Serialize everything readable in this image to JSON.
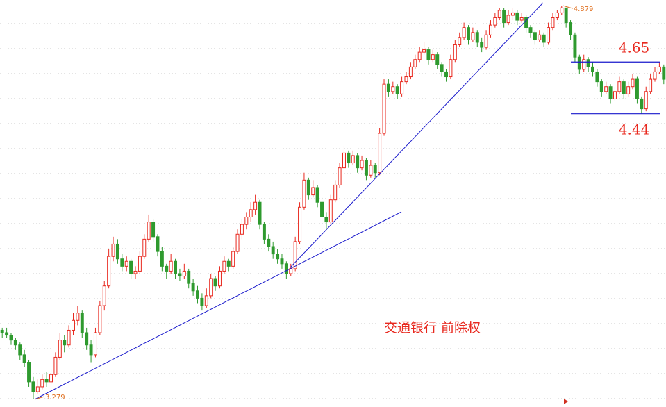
{
  "chart_data": {
    "type": "candlestick",
    "title": "交通银行 前除权",
    "ylim": [
      3.248,
      4.902
    ],
    "up_color": "#e8281e",
    "down_color": "#2f9a2f",
    "hlines": [
      4.65,
      4.44
    ],
    "hline_color": "#1a1acc",
    "marked_extremes": [
      3.279,
      4.879
    ],
    "candles": [
      [
        3.56,
        3.57,
        3.53,
        3.55
      ],
      [
        3.55,
        3.57,
        3.53,
        3.54
      ],
      [
        3.54,
        3.55,
        3.5,
        3.52
      ],
      [
        3.52,
        3.53,
        3.48,
        3.5
      ],
      [
        3.5,
        3.51,
        3.44,
        3.46
      ],
      [
        3.46,
        3.48,
        3.41,
        3.43
      ],
      [
        3.43,
        3.44,
        3.33,
        3.35
      ],
      [
        3.35,
        3.37,
        3.279,
        3.31
      ],
      [
        3.31,
        3.36,
        3.3,
        3.33
      ],
      [
        3.33,
        3.38,
        3.32,
        3.36
      ],
      [
        3.36,
        3.39,
        3.33,
        3.35
      ],
      [
        3.35,
        3.4,
        3.34,
        3.38
      ],
      [
        3.38,
        3.47,
        3.37,
        3.45
      ],
      [
        3.45,
        3.55,
        3.44,
        3.52
      ],
      [
        3.52,
        3.54,
        3.47,
        3.5
      ],
      [
        3.5,
        3.58,
        3.49,
        3.56
      ],
      [
        3.56,
        3.63,
        3.54,
        3.6
      ],
      [
        3.6,
        3.66,
        3.58,
        3.63
      ],
      [
        3.63,
        3.64,
        3.53,
        3.55
      ],
      [
        3.55,
        3.57,
        3.48,
        3.5
      ],
      [
        3.5,
        3.52,
        3.43,
        3.46
      ],
      [
        3.46,
        3.57,
        3.45,
        3.55
      ],
      [
        3.55,
        3.68,
        3.54,
        3.66
      ],
      [
        3.66,
        3.76,
        3.64,
        3.74
      ],
      [
        3.74,
        3.89,
        3.73,
        3.86
      ],
      [
        3.86,
        3.94,
        3.84,
        3.91
      ],
      [
        3.91,
        3.93,
        3.83,
        3.85
      ],
      [
        3.85,
        3.87,
        3.8,
        3.82
      ],
      [
        3.82,
        3.86,
        3.8,
        3.84
      ],
      [
        3.84,
        3.85,
        3.77,
        3.79
      ],
      [
        3.79,
        3.82,
        3.77,
        3.8
      ],
      [
        3.8,
        3.88,
        3.79,
        3.86
      ],
      [
        3.86,
        3.95,
        3.85,
        3.93
      ],
      [
        3.93,
        4.03,
        3.92,
        4.0
      ],
      [
        4.0,
        4.01,
        3.92,
        3.94
      ],
      [
        3.94,
        3.95,
        3.86,
        3.88
      ],
      [
        3.88,
        3.9,
        3.8,
        3.82
      ],
      [
        3.82,
        3.83,
        3.77,
        3.8
      ],
      [
        3.8,
        3.87,
        3.79,
        3.84
      ],
      [
        3.84,
        3.85,
        3.77,
        3.79
      ],
      [
        3.79,
        3.81,
        3.76,
        3.78
      ],
      [
        3.78,
        3.83,
        3.77,
        3.8
      ],
      [
        3.8,
        3.81,
        3.73,
        3.75
      ],
      [
        3.75,
        3.77,
        3.7,
        3.72
      ],
      [
        3.72,
        3.74,
        3.67,
        3.69
      ],
      [
        3.69,
        3.71,
        3.64,
        3.66
      ],
      [
        3.66,
        3.73,
        3.65,
        3.7
      ],
      [
        3.7,
        3.79,
        3.69,
        3.77
      ],
      [
        3.77,
        3.78,
        3.72,
        3.74
      ],
      [
        3.74,
        3.82,
        3.73,
        3.8
      ],
      [
        3.8,
        3.86,
        3.79,
        3.84
      ],
      [
        3.84,
        3.85,
        3.8,
        3.82
      ],
      [
        3.82,
        3.9,
        3.81,
        3.88
      ],
      [
        3.88,
        3.97,
        3.87,
        3.95
      ],
      [
        3.95,
        4.01,
        3.93,
        3.99
      ],
      [
        3.99,
        4.04,
        3.97,
        4.02
      ],
      [
        4.02,
        4.08,
        4.0,
        4.05
      ],
      [
        4.05,
        4.11,
        4.03,
        4.08
      ],
      [
        4.08,
        4.09,
        3.97,
        3.99
      ],
      [
        3.99,
        4.0,
        3.91,
        3.93
      ],
      [
        3.93,
        3.95,
        3.88,
        3.9
      ],
      [
        3.9,
        3.92,
        3.85,
        3.87
      ],
      [
        3.87,
        3.89,
        3.83,
        3.85
      ],
      [
        3.85,
        3.87,
        3.81,
        3.83
      ],
      [
        3.83,
        3.84,
        3.77,
        3.79
      ],
      [
        3.79,
        3.83,
        3.78,
        3.81
      ],
      [
        3.81,
        3.94,
        3.8,
        3.92
      ],
      [
        3.92,
        4.08,
        3.91,
        4.06
      ],
      [
        4.06,
        4.2,
        4.05,
        4.17
      ],
      [
        4.17,
        4.18,
        4.09,
        4.11
      ],
      [
        4.11,
        4.17,
        4.1,
        4.14
      ],
      [
        4.14,
        4.15,
        4.06,
        4.08
      ],
      [
        4.08,
        4.1,
        4.0,
        4.02
      ],
      [
        4.02,
        4.04,
        3.97,
        4.0
      ],
      [
        4.0,
        4.11,
        3.99,
        4.09
      ],
      [
        4.09,
        4.17,
        4.08,
        4.15
      ],
      [
        4.15,
        4.24,
        4.14,
        4.22
      ],
      [
        4.22,
        4.31,
        4.21,
        4.28
      ],
      [
        4.28,
        4.29,
        4.22,
        4.24
      ],
      [
        4.24,
        4.29,
        4.23,
        4.27
      ],
      [
        4.27,
        4.28,
        4.2,
        4.22
      ],
      [
        4.22,
        4.27,
        4.21,
        4.25
      ],
      [
        4.25,
        4.26,
        4.17,
        4.19
      ],
      [
        4.19,
        4.25,
        4.18,
        4.23
      ],
      [
        4.23,
        4.24,
        4.18,
        4.2
      ],
      [
        4.2,
        4.38,
        4.19,
        4.36
      ],
      [
        4.36,
        4.58,
        4.35,
        4.56
      ],
      [
        4.56,
        4.58,
        4.51,
        4.53
      ],
      [
        4.53,
        4.57,
        4.52,
        4.55
      ],
      [
        4.55,
        4.56,
        4.5,
        4.52
      ],
      [
        4.52,
        4.59,
        4.51,
        4.57
      ],
      [
        4.57,
        4.61,
        4.56,
        4.59
      ],
      [
        4.59,
        4.65,
        4.58,
        4.63
      ],
      [
        4.63,
        4.68,
        4.62,
        4.66
      ],
      [
        4.66,
        4.71,
        4.65,
        4.69
      ],
      [
        4.69,
        4.73,
        4.68,
        4.7
      ],
      [
        4.7,
        4.71,
        4.64,
        4.66
      ],
      [
        4.66,
        4.7,
        4.65,
        4.68
      ],
      [
        4.68,
        4.69,
        4.62,
        4.64
      ],
      [
        4.64,
        4.65,
        4.59,
        4.61
      ],
      [
        4.61,
        4.62,
        4.57,
        4.59
      ],
      [
        4.59,
        4.68,
        4.58,
        4.66
      ],
      [
        4.66,
        4.74,
        4.65,
        4.72
      ],
      [
        4.72,
        4.77,
        4.71,
        4.75
      ],
      [
        4.75,
        4.81,
        4.74,
        4.79
      ],
      [
        4.79,
        4.8,
        4.72,
        4.74
      ],
      [
        4.74,
        4.79,
        4.73,
        4.77
      ],
      [
        4.77,
        4.78,
        4.71,
        4.73
      ],
      [
        4.73,
        4.75,
        4.69,
        4.71
      ],
      [
        4.71,
        4.78,
        4.7,
        4.76
      ],
      [
        4.76,
        4.82,
        4.75,
        4.8
      ],
      [
        4.8,
        4.85,
        4.79,
        4.83
      ],
      [
        4.83,
        4.87,
        4.82,
        4.86
      ],
      [
        4.86,
        4.87,
        4.79,
        4.81
      ],
      [
        4.81,
        4.86,
        4.8,
        4.84
      ],
      [
        4.84,
        4.87,
        4.82,
        4.85
      ],
      [
        4.85,
        4.86,
        4.8,
        4.82
      ],
      [
        4.82,
        4.85,
        4.81,
        4.83
      ],
      [
        4.83,
        4.84,
        4.77,
        4.79
      ],
      [
        4.79,
        4.8,
        4.75,
        4.77
      ],
      [
        4.77,
        4.78,
        4.72,
        4.74
      ],
      [
        4.74,
        4.78,
        4.73,
        4.76
      ],
      [
        4.76,
        4.77,
        4.71,
        4.73
      ],
      [
        4.73,
        4.81,
        4.72,
        4.79
      ],
      [
        4.79,
        4.85,
        4.78,
        4.83
      ],
      [
        4.83,
        4.86,
        4.82,
        4.85
      ],
      [
        4.85,
        4.879,
        4.84,
        4.87
      ],
      [
        4.87,
        4.87,
        4.79,
        4.81
      ],
      [
        4.81,
        4.82,
        4.74,
        4.76
      ],
      [
        4.76,
        4.77,
        4.65,
        4.67
      ],
      [
        4.67,
        4.68,
        4.6,
        4.62
      ],
      [
        4.62,
        4.68,
        4.61,
        4.66
      ],
      [
        4.66,
        4.67,
        4.61,
        4.63
      ],
      [
        4.63,
        4.65,
        4.59,
        4.61
      ],
      [
        4.61,
        4.62,
        4.55,
        4.57
      ],
      [
        4.57,
        4.58,
        4.51,
        4.53
      ],
      [
        4.53,
        4.57,
        4.52,
        4.55
      ],
      [
        4.55,
        4.56,
        4.48,
        4.5
      ],
      [
        4.5,
        4.55,
        4.49,
        4.53
      ],
      [
        4.53,
        4.59,
        4.52,
        4.57
      ],
      [
        4.57,
        4.58,
        4.5,
        4.52
      ],
      [
        4.52,
        4.57,
        4.51,
        4.55
      ],
      [
        4.55,
        4.6,
        4.54,
        4.58
      ],
      [
        4.58,
        4.59,
        4.48,
        4.5
      ],
      [
        4.5,
        4.51,
        4.44,
        4.46
      ],
      [
        4.46,
        4.55,
        4.45,
        4.53
      ],
      [
        4.53,
        4.6,
        4.52,
        4.58
      ],
      [
        4.58,
        4.63,
        4.57,
        4.61
      ],
      [
        4.61,
        4.65,
        4.6,
        4.63
      ],
      [
        4.63,
        4.64,
        4.56,
        4.58
      ]
    ]
  }
}
